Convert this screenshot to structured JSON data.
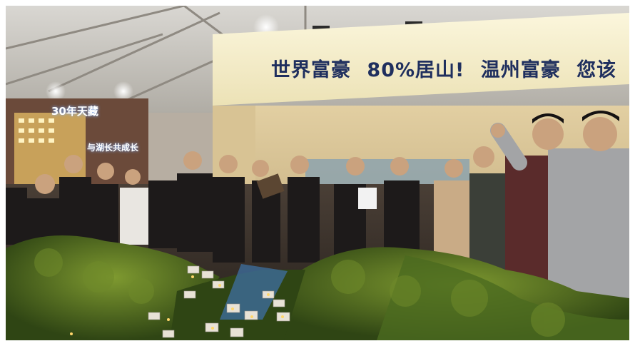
{
  "banner": {
    "segments": [
      "世界富豪",
      "80%居山!",
      "温州富豪",
      "您该"
    ]
  },
  "signs": {
    "left_top": "30年天藏",
    "left_lower": "与湖长共成长"
  },
  "colors": {
    "banner_bg": "#f6f0cf",
    "banner_text": "#1f2f5e",
    "foliage": "#3f5a1c",
    "foliage_highlight": "#6f8a2a",
    "ceiling": "#c9c6c0",
    "sign_bg": "#6b4a3a"
  }
}
